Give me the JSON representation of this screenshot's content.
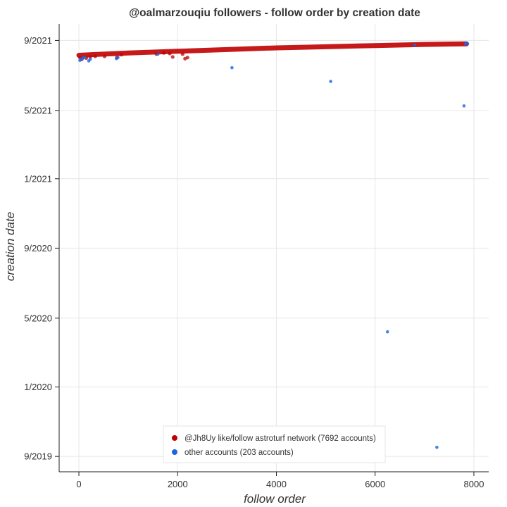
{
  "chart_data": {
    "type": "scatter",
    "title": "@oalmarzouqiu followers - follow order by creation date",
    "xlabel": "follow order",
    "ylabel": "creation date",
    "xlim": [
      -400,
      8300
    ],
    "ylim": [
      "2019-08-05",
      "2021-09-30"
    ],
    "x_ticks": [
      {
        "value": 0,
        "label": "0"
      },
      {
        "value": 2000,
        "label": "2000"
      },
      {
        "value": 4000,
        "label": "4000"
      },
      {
        "value": 6000,
        "label": "6000"
      },
      {
        "value": 8000,
        "label": "8000"
      }
    ],
    "y_ticks": [
      {
        "value": "2019-09-01",
        "label": "9/2019"
      },
      {
        "value": "2020-01-01",
        "label": "1/2020"
      },
      {
        "value": "2020-05-01",
        "label": "5/2020"
      },
      {
        "value": "2020-09-01",
        "label": "9/2020"
      },
      {
        "value": "2021-01-01",
        "label": "1/2021"
      },
      {
        "value": "2021-05-01",
        "label": "5/2021"
      },
      {
        "value": "2021-09-01",
        "label": "9/2021"
      }
    ],
    "grid": true,
    "legend_position": "bottom-center",
    "series": [
      {
        "name": "@Jh8Uy like/follow astroturf network (7692 accounts)",
        "color": "#c00000",
        "trend": [
          {
            "x": 0,
            "date": "2021-08-06"
          },
          {
            "x": 1000,
            "date": "2021-08-10"
          },
          {
            "x": 2000,
            "date": "2021-08-13"
          },
          {
            "x": 3000,
            "date": "2021-08-16"
          },
          {
            "x": 4000,
            "date": "2021-08-19"
          },
          {
            "x": 5000,
            "date": "2021-08-21"
          },
          {
            "x": 6000,
            "date": "2021-08-23"
          },
          {
            "x": 7000,
            "date": "2021-08-25"
          },
          {
            "x": 7850,
            "date": "2021-08-26"
          }
        ],
        "points": [
          {
            "x": 20,
            "date": "2021-08-02"
          },
          {
            "x": 60,
            "date": "2021-07-30"
          },
          {
            "x": 150,
            "date": "2021-08-01"
          },
          {
            "x": 230,
            "date": "2021-08-03"
          },
          {
            "x": 330,
            "date": "2021-08-04"
          },
          {
            "x": 520,
            "date": "2021-08-04"
          },
          {
            "x": 770,
            "date": "2021-08-02"
          },
          {
            "x": 860,
            "date": "2021-08-07"
          },
          {
            "x": 1570,
            "date": "2021-08-08"
          },
          {
            "x": 1720,
            "date": "2021-08-10"
          },
          {
            "x": 1840,
            "date": "2021-08-09"
          },
          {
            "x": 1900,
            "date": "2021-08-03"
          },
          {
            "x": 2100,
            "date": "2021-08-08"
          },
          {
            "x": 2150,
            "date": "2021-07-31"
          },
          {
            "x": 2200,
            "date": "2021-08-02"
          }
        ]
      },
      {
        "name": "other accounts (203 accounts)",
        "color": "#1a66e0",
        "points": [
          {
            "x": 20,
            "date": "2021-07-28"
          },
          {
            "x": 40,
            "date": "2021-07-30"
          },
          {
            "x": 80,
            "date": "2021-08-01"
          },
          {
            "x": 120,
            "date": "2021-08-02"
          },
          {
            "x": 200,
            "date": "2021-07-27"
          },
          {
            "x": 230,
            "date": "2021-07-30"
          },
          {
            "x": 760,
            "date": "2021-07-31"
          },
          {
            "x": 790,
            "date": "2021-08-02"
          },
          {
            "x": 1600,
            "date": "2021-08-08"
          },
          {
            "x": 3100,
            "date": "2021-07-15"
          },
          {
            "x": 5100,
            "date": "2021-06-21"
          },
          {
            "x": 6250,
            "date": "2020-04-07"
          },
          {
            "x": 6800,
            "date": "2021-08-24"
          },
          {
            "x": 7250,
            "date": "2019-09-17"
          },
          {
            "x": 7800,
            "date": "2021-05-09"
          },
          {
            "x": 7830,
            "date": "2021-08-26"
          },
          {
            "x": 7850,
            "date": "2021-08-27"
          },
          {
            "x": 7870,
            "date": "2021-08-26"
          }
        ]
      }
    ]
  }
}
